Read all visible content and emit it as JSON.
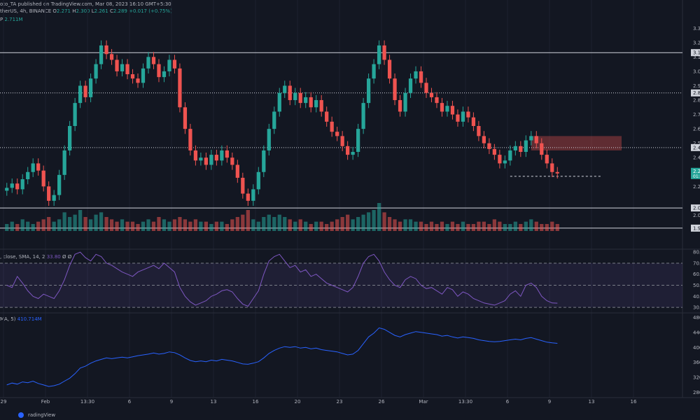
{
  "header": {
    "line1": "oto_TA published on TradingView.com, Mar 08, 2023 16:10 GMT+5:30",
    "symbol": "therUS, 4h, BINANCE",
    "o_label": "O",
    "o": "2.271",
    "h_label": "H",
    "h": "2.300",
    "l_label": "L",
    "l": "2.261",
    "c_label": "C",
    "c": "2.289",
    "change": "+0.017 (+0.75%)",
    "vol_label": "P",
    "vol": "2.711M"
  },
  "rsi_legend": {
    "label": ", close, SMA, 14, 2",
    "value": "33.80",
    "extra": "Ø Ø"
  },
  "obv_legend": {
    "label": "MA, 5)",
    "value": "410.714M"
  },
  "footer": {
    "text": "radingView"
  },
  "price_tag": {
    "value": "2.2",
    "time": "01:"
  },
  "colors": {
    "up": "#26a69a",
    "down": "#ef5350",
    "bg": "#131722",
    "grid": "#1e2230",
    "rsi_line": "#7e57c2",
    "obv_line": "#2962ff"
  },
  "chart_data": [
    {
      "type": "candlestick",
      "y_ticks": [
        "3.30",
        "3.2",
        "3.1",
        "3.00",
        "2.9",
        "2.8",
        "2.7",
        "2.60",
        "2.5",
        "2.4",
        "2.3",
        "2.2",
        "2.0",
        "1.9"
      ],
      "ylim": [
        1.89,
        3.35
      ],
      "x_ticks": [
        "29",
        "Feb",
        "13:30",
        "6",
        "9",
        "13",
        "16",
        "20",
        "23",
        "26",
        "Mar",
        "13:30",
        "6",
        "9",
        "13",
        "16"
      ],
      "levels": [
        {
          "value": 3.13,
          "style": "solid",
          "label": "3.1"
        },
        {
          "value": 2.85,
          "style": "dotted",
          "label": "2.8"
        },
        {
          "value": 2.47,
          "style": "dotted",
          "label": "2.4"
        },
        {
          "value": 2.05,
          "style": "solid",
          "label": "2.0"
        },
        {
          "value": 1.91,
          "style": "solid",
          "label": "1.9"
        }
      ],
      "supply_zone": {
        "from": 2.45,
        "to": 2.55
      },
      "support_dashed": 2.27,
      "closes": [
        2.19,
        2.22,
        2.18,
        2.25,
        2.3,
        2.36,
        2.31,
        2.2,
        2.1,
        2.14,
        2.28,
        2.45,
        2.62,
        2.78,
        2.9,
        2.82,
        2.95,
        3.05,
        3.18,
        3.12,
        3.08,
        3.0,
        3.05,
        2.98,
        2.95,
        2.92,
        3.02,
        3.1,
        3.05,
        2.96,
        3.0,
        3.08,
        3.02,
        2.75,
        2.6,
        2.45,
        2.38,
        2.4,
        2.35,
        2.42,
        2.38,
        2.45,
        2.4,
        2.35,
        2.26,
        2.15,
        2.1,
        2.18,
        2.3,
        2.45,
        2.6,
        2.72,
        2.85,
        2.9,
        2.8,
        2.85,
        2.78,
        2.82,
        2.75,
        2.8,
        2.72,
        2.65,
        2.58,
        2.55,
        2.48,
        2.42,
        2.44,
        2.6,
        2.78,
        2.95,
        3.05,
        3.18,
        3.08,
        2.95,
        2.8,
        2.72,
        2.85,
        2.95,
        3.0,
        2.92,
        2.85,
        2.82,
        2.78,
        2.72,
        2.76,
        2.7,
        2.65,
        2.72,
        2.68,
        2.62,
        2.55,
        2.5,
        2.46,
        2.42,
        2.36,
        2.38,
        2.45,
        2.48,
        2.44,
        2.52,
        2.55,
        2.5,
        2.42,
        2.36,
        2.3,
        2.29
      ],
      "volumes": [
        3,
        4,
        3,
        5,
        4,
        3,
        4,
        5,
        6,
        4,
        5,
        8,
        6,
        7,
        9,
        6,
        5,
        7,
        8,
        6,
        5,
        4,
        5,
        4,
        4,
        3,
        4,
        5,
        4,
        6,
        5,
        4,
        5,
        6,
        5,
        4,
        5,
        4,
        4,
        3,
        4,
        4,
        3,
        5,
        6,
        7,
        9,
        5,
        4,
        6,
        7,
        6,
        7,
        6,
        5,
        4,
        5,
        4,
        3,
        4,
        4,
        3,
        4,
        5,
        6,
        7,
        5,
        6,
        7,
        8,
        9,
        12,
        8,
        6,
        5,
        4,
        5,
        5,
        4,
        4,
        3,
        4,
        3,
        4,
        3,
        4,
        3,
        4,
        3,
        3,
        4,
        4,
        3,
        5,
        4,
        3,
        3,
        4,
        3,
        4,
        5,
        4,
        3,
        3,
        4,
        3
      ]
    },
    {
      "type": "line",
      "name": "RSI",
      "y_ticks": [
        "80.0",
        "70.0",
        "60.0",
        "50.0",
        "40.0",
        "30.0"
      ],
      "ylim": [
        25,
        82
      ],
      "values": [
        50,
        48,
        58,
        52,
        45,
        40,
        38,
        42,
        40,
        38,
        45,
        55,
        68,
        78,
        80,
        75,
        72,
        78,
        76,
        70,
        68,
        65,
        62,
        60,
        58,
        62,
        64,
        66,
        68,
        65,
        70,
        66,
        62,
        48,
        40,
        35,
        32,
        34,
        36,
        40,
        42,
        45,
        46,
        44,
        38,
        33,
        31,
        38,
        45,
        60,
        72,
        76,
        78,
        72,
        66,
        68,
        62,
        64,
        58,
        60,
        56,
        52,
        50,
        48,
        46,
        44,
        48,
        58,
        70,
        76,
        78,
        72,
        62,
        55,
        50,
        48,
        55,
        58,
        56,
        50,
        47,
        48,
        45,
        42,
        48,
        46,
        40,
        44,
        42,
        38,
        36,
        34,
        33,
        32,
        34,
        36,
        42,
        45,
        40,
        50,
        52,
        48,
        40,
        36,
        34,
        33.8
      ]
    },
    {
      "type": "line",
      "name": "OBV",
      "y_ticks": [
        "480",
        "440",
        "400",
        "360",
        "320",
        "280"
      ],
      "ylim": [
        270,
        490
      ],
      "values": [
        300,
        305,
        302,
        308,
        306,
        310,
        304,
        300,
        296,
        298,
        302,
        310,
        318,
        330,
        345,
        350,
        358,
        364,
        368,
        372,
        370,
        372,
        374,
        372,
        375,
        378,
        380,
        382,
        385,
        382,
        384,
        388,
        386,
        380,
        372,
        365,
        362,
        364,
        362,
        366,
        364,
        368,
        366,
        364,
        360,
        356,
        355,
        358,
        362,
        372,
        384,
        392,
        398,
        402,
        400,
        402,
        398,
        400,
        396,
        398,
        394,
        392,
        390,
        388,
        384,
        380,
        382,
        392,
        410,
        428,
        438,
        452,
        448,
        440,
        432,
        428,
        434,
        438,
        442,
        440,
        438,
        436,
        434,
        430,
        432,
        428,
        425,
        428,
        426,
        424,
        420,
        418,
        416,
        415,
        416,
        418,
        420,
        422,
        420,
        424,
        426,
        422,
        418,
        414,
        412,
        410.7
      ]
    }
  ]
}
